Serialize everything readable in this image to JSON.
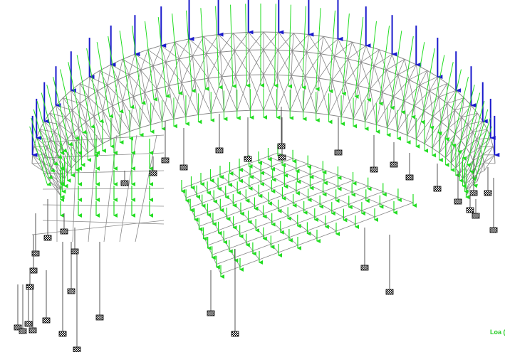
{
  "label": "Loa ("
}
